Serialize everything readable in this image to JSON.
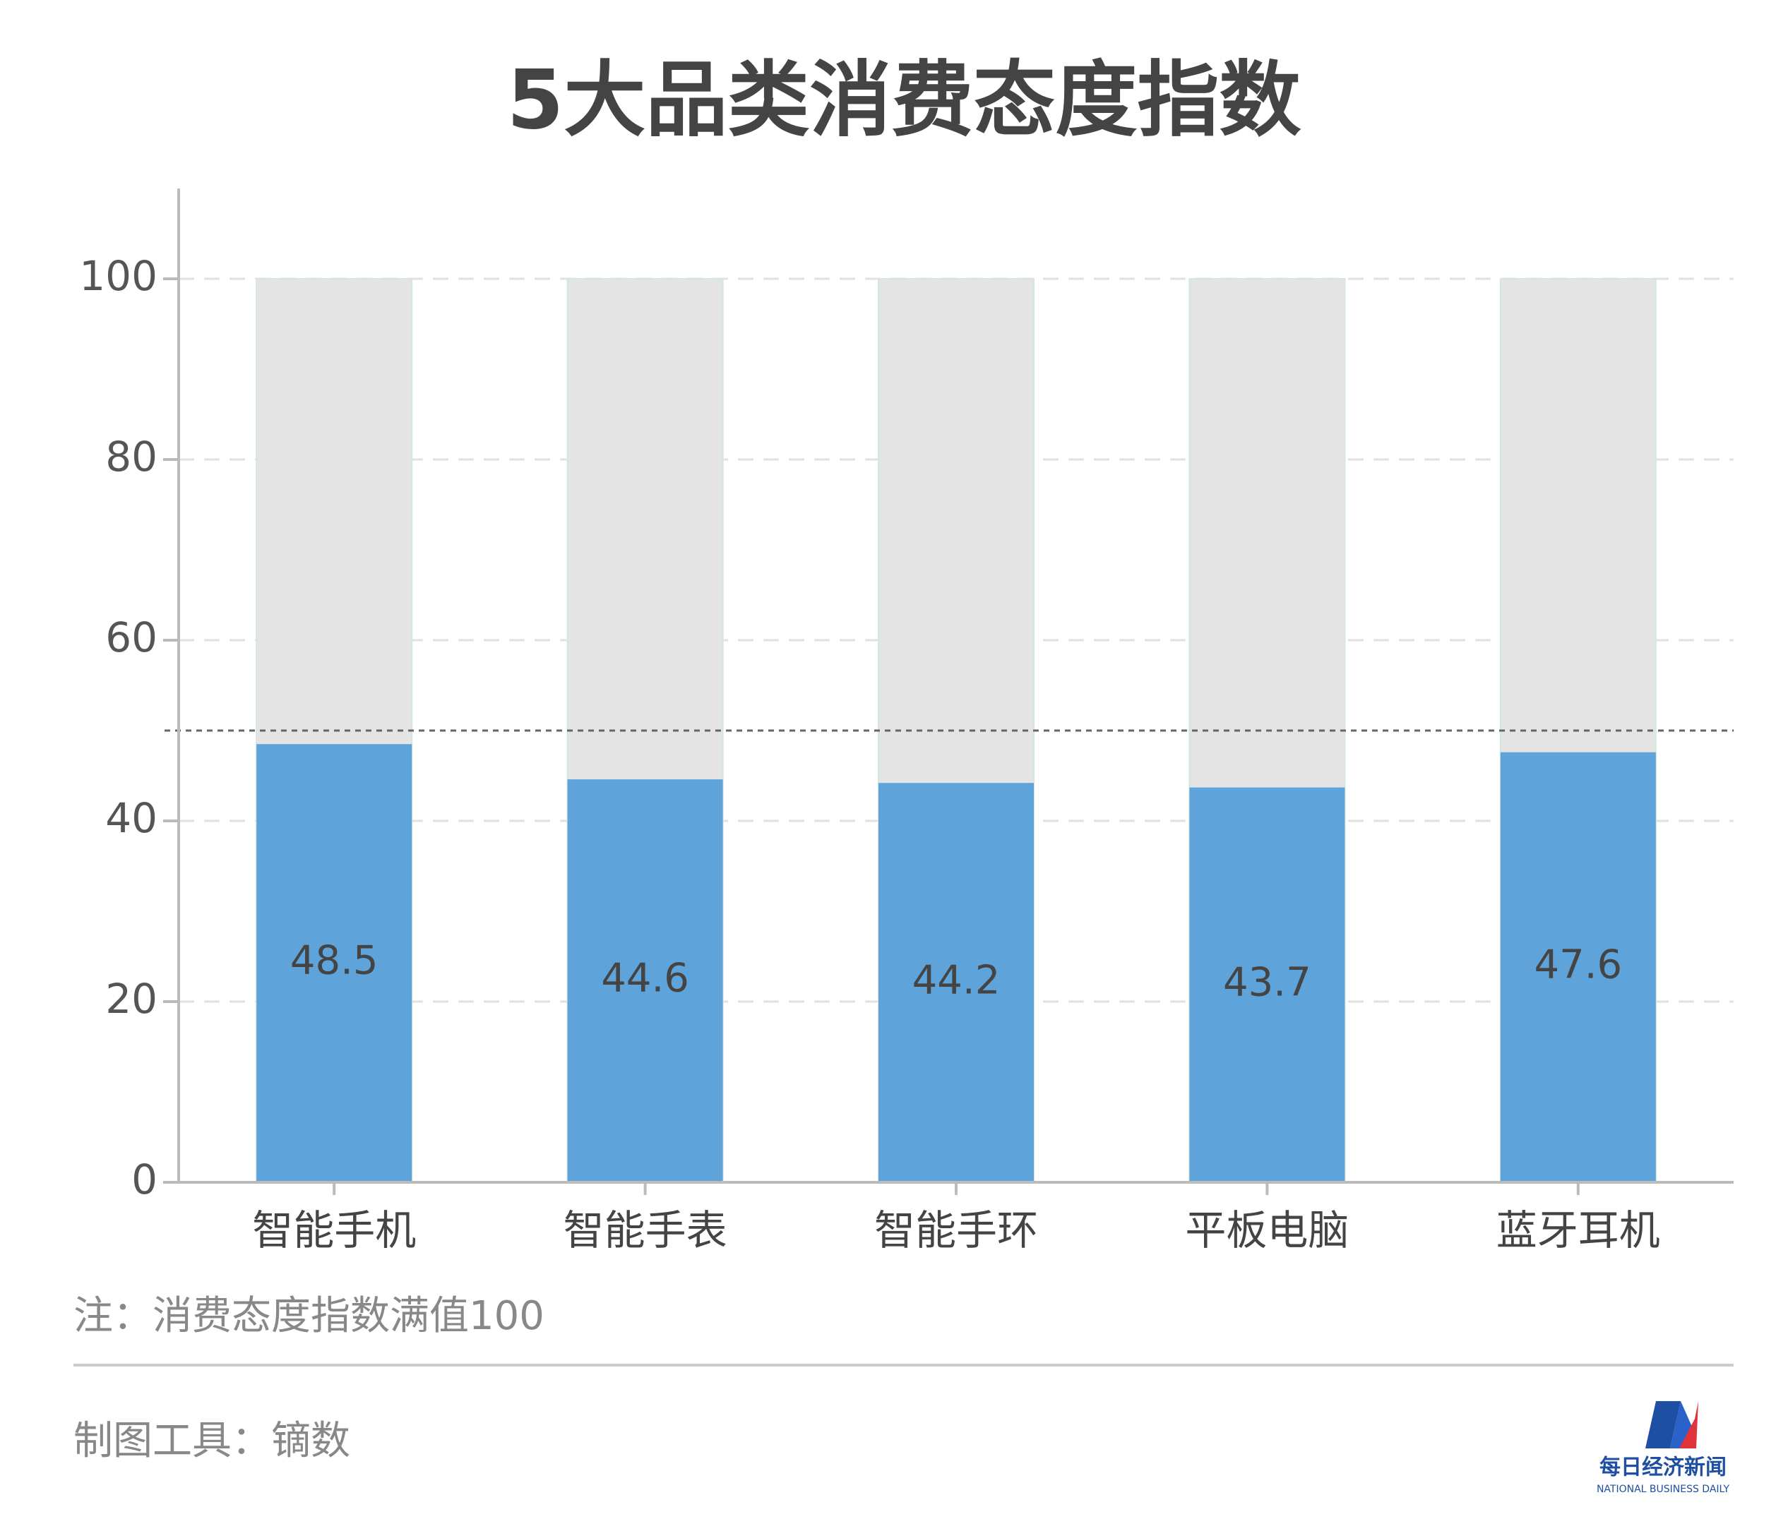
{
  "chart_data": {
    "type": "bar",
    "title": "5大品类消费态度指数",
    "categories": [
      "智能手机",
      "智能手表",
      "智能手环",
      "平板电脑",
      "蓝牙耳机"
    ],
    "values": [
      48.5,
      44.6,
      44.2,
      43.7,
      47.6
    ],
    "color": "#5ea3d9",
    "full_value": 100,
    "full_color": "#e4e4e4",
    "reference_line": 50,
    "ylim": [
      0,
      110
    ],
    "yticks": [
      0,
      20,
      40,
      60,
      80,
      100
    ],
    "grid": true,
    "note": "注：消费态度指数满值100",
    "source": "制图工具：镝数",
    "logo": {
      "name": "每日经济新闻",
      "subtitle": "NATIONAL BUSINESS DAILY"
    }
  }
}
